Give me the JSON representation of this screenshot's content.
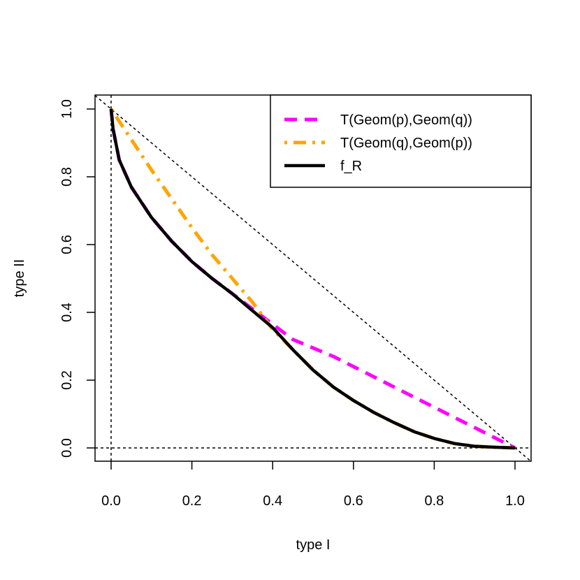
{
  "chart_data": {
    "type": "line",
    "xlabel": "type I",
    "ylabel": "type II",
    "xlim": [
      0,
      1
    ],
    "ylim": [
      0,
      1
    ],
    "x_ticks": [
      "0.0",
      "0.2",
      "0.4",
      "0.6",
      "0.8",
      "1.0"
    ],
    "y_ticks": [
      "0.0",
      "0.2",
      "0.4",
      "0.6",
      "0.8",
      "1.0"
    ],
    "grid": false,
    "legend_position": "top-right",
    "reference_lines": [
      {
        "kind": "diagonal",
        "from": [
          0,
          1
        ],
        "to": [
          1,
          0
        ],
        "style": "dotted"
      },
      {
        "kind": "vertical",
        "x": 0,
        "style": "dotted"
      },
      {
        "kind": "horizontal",
        "y": 0,
        "style": "dotted"
      }
    ],
    "series": [
      {
        "name": "T(Geom(p),Geom(q))",
        "color": "#ff00ff",
        "style": "dashed",
        "x": [
          0.0,
          0.005,
          0.02,
          0.05,
          0.1,
          0.15,
          0.2,
          0.25,
          0.3,
          0.35,
          0.4,
          0.45,
          0.5,
          0.55,
          0.6,
          0.65,
          0.7,
          0.75,
          0.8,
          0.85,
          0.9,
          0.95,
          1.0
        ],
        "y": [
          1.0,
          0.94,
          0.85,
          0.77,
          0.68,
          0.61,
          0.55,
          0.5,
          0.455,
          0.41,
          0.365,
          0.32,
          0.295,
          0.27,
          0.24,
          0.21,
          0.18,
          0.15,
          0.12,
          0.09,
          0.06,
          0.03,
          0.0
        ]
      },
      {
        "name": "T(Geom(q),Geom(p))",
        "color": "#ffa500",
        "style": "dot-dash",
        "x": [
          0.0,
          0.05,
          0.1,
          0.15,
          0.2,
          0.25,
          0.3,
          0.35,
          0.4,
          0.45,
          0.5,
          0.55,
          0.6,
          0.65,
          0.7,
          0.75,
          0.8,
          0.85,
          0.9,
          0.95,
          1.0
        ],
        "y": [
          1.0,
          0.91,
          0.82,
          0.735,
          0.65,
          0.57,
          0.5,
          0.43,
          0.35,
          0.29,
          0.23,
          0.18,
          0.14,
          0.105,
          0.075,
          0.048,
          0.028,
          0.013,
          0.005,
          0.002,
          0.0
        ]
      },
      {
        "name": "f_R",
        "color": "#000000",
        "style": "solid",
        "x": [
          0.0,
          0.005,
          0.02,
          0.05,
          0.1,
          0.15,
          0.2,
          0.25,
          0.3,
          0.35,
          0.4,
          0.45,
          0.5,
          0.55,
          0.6,
          0.65,
          0.7,
          0.75,
          0.8,
          0.85,
          0.9,
          0.95,
          1.0
        ],
        "y": [
          1.0,
          0.94,
          0.85,
          0.77,
          0.68,
          0.61,
          0.55,
          0.5,
          0.455,
          0.405,
          0.355,
          0.29,
          0.23,
          0.18,
          0.14,
          0.105,
          0.075,
          0.048,
          0.028,
          0.013,
          0.005,
          0.002,
          0.0
        ]
      }
    ]
  }
}
